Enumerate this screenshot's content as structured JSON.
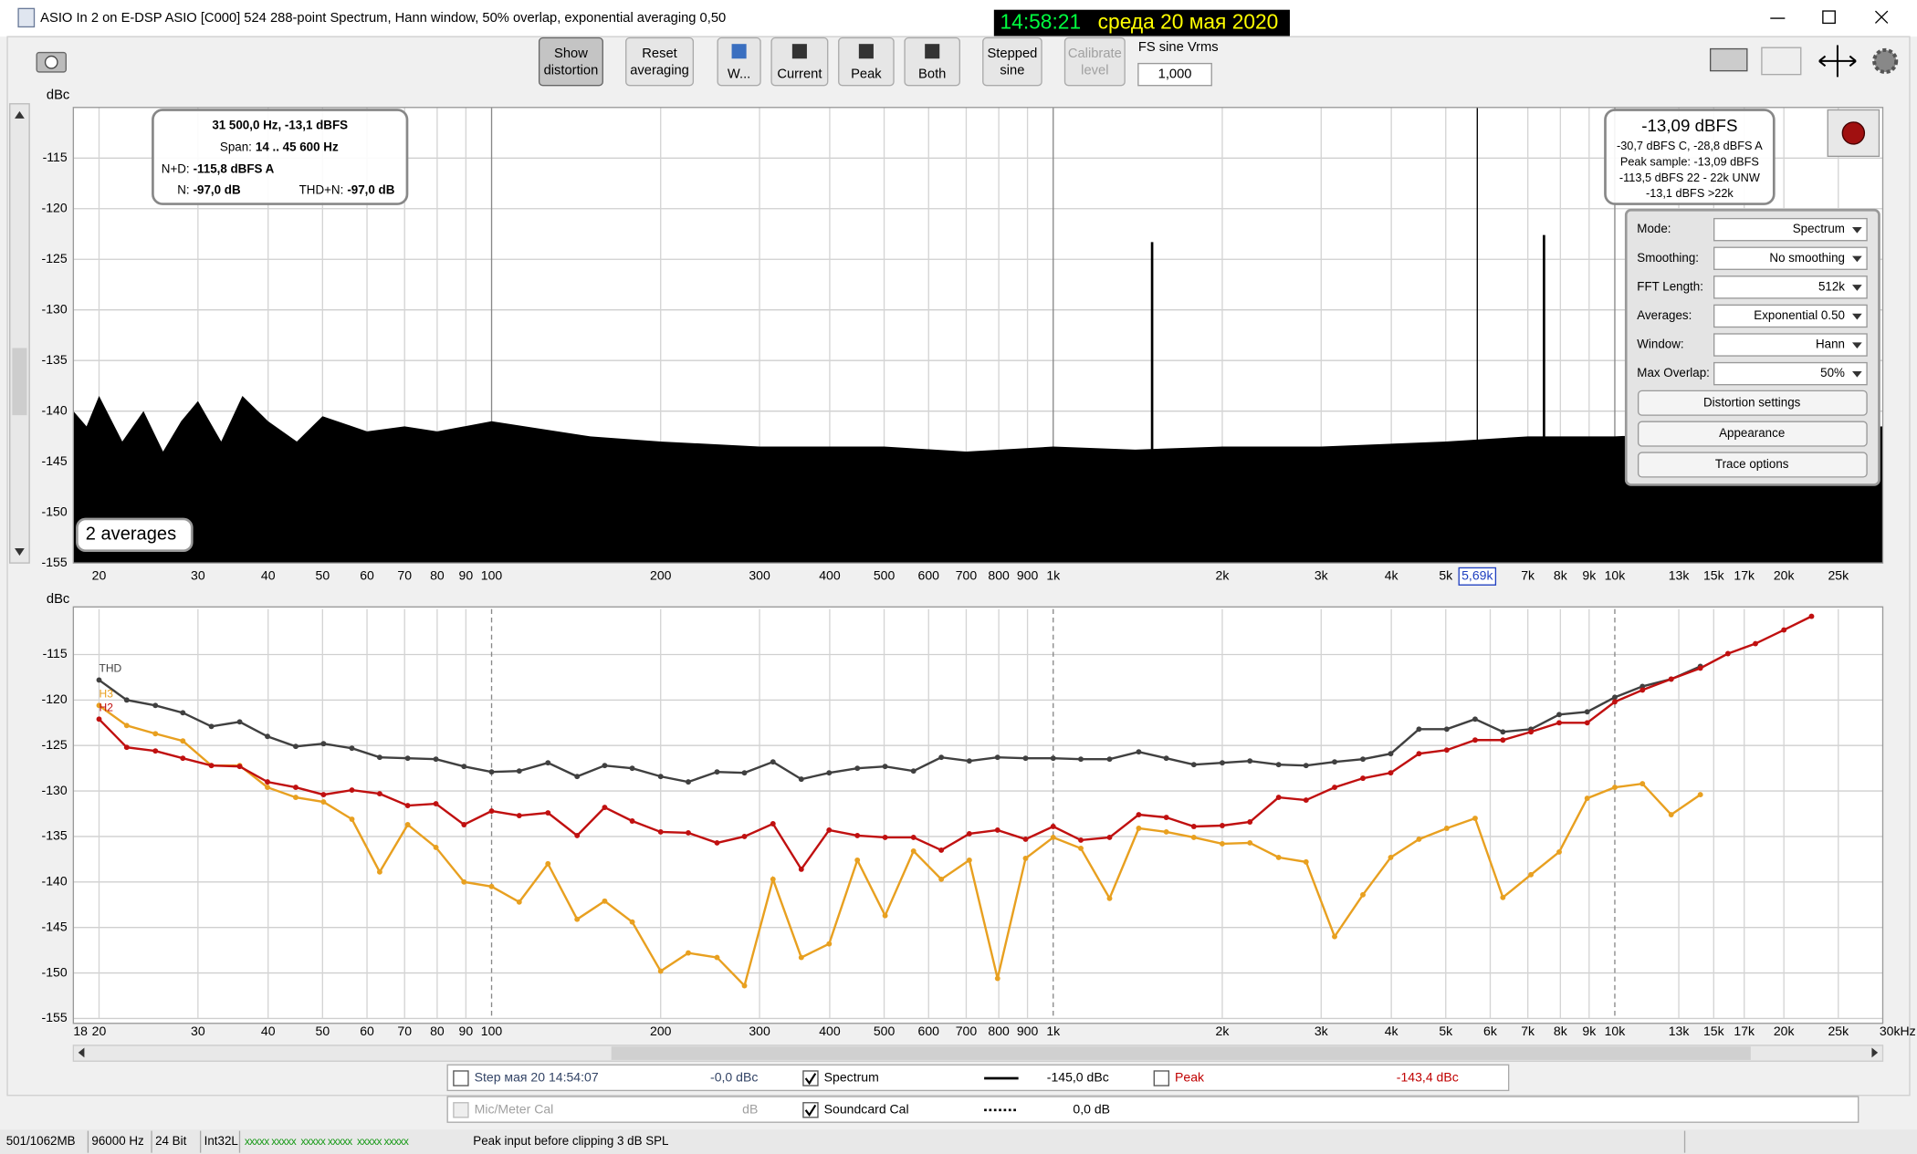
{
  "window": {
    "title": "ASIO In 2 on E-DSP ASIO [C000] 524 288-point Spectrum, Hann window, 50% overlap, exponential averaging 0,50",
    "clock": {
      "time": "14:58:21",
      "date": "среда 20 мая 2020"
    }
  },
  "toolbar": {
    "buttons": [
      {
        "label": [
          "Show",
          "distortion"
        ],
        "pressed": true
      },
      {
        "label": [
          "Reset",
          "averaging"
        ]
      },
      {
        "label": [
          "W..."
        ]
      },
      {
        "label": [
          "Current"
        ]
      },
      {
        "label": [
          "Peak"
        ]
      },
      {
        "label": [
          "Both"
        ]
      },
      {
        "label": [
          "Stepped",
          "sine"
        ]
      },
      {
        "label": [
          "Calibrate",
          "level"
        ],
        "disabled": true
      }
    ],
    "fs_label": "FS sine Vrms",
    "fs_value": "1,000"
  },
  "info_box": {
    "cursor": "31 500,0 Hz, -13,1 dBFS",
    "span_label": "Span:",
    "span": "14 .. 45 600 Hz",
    "nd_label": "N+D:",
    "nd": "-115,8 dBFS A",
    "n_label": "N:",
    "n": "-97,0 dB",
    "thdn_label": "THD+N:",
    "thdn": "-97,0 dB"
  },
  "level_box": {
    "main": "-13,09 dBFS",
    "lines": [
      "-30,7 dBFS C, -28,8 dBFS A",
      "Peak sample: -13,09 dBFS",
      "-113,5 dBFS 22 - 22k UNW",
      "-13,1 dBFS >22k"
    ]
  },
  "controls": {
    "rows": [
      {
        "label": "Mode:",
        "value": "Spectrum"
      },
      {
        "label": "Smoothing:",
        "value": "No  smoothing"
      },
      {
        "label": "FFT Length:",
        "value": "512k"
      },
      {
        "label": "Averages:",
        "value": "Exponential 0.50"
      },
      {
        "label": "Window:",
        "value": "Hann"
      },
      {
        "label": "Max Overlap:",
        "value": "50%"
      }
    ],
    "buttons": [
      "Distortion settings",
      "Appearance",
      "Trace options"
    ]
  },
  "averages": "2 averages",
  "chart_data": [
    {
      "type": "area",
      "ylabel": "dBc",
      "xscale": "log",
      "xlim": [
        18,
        30000
      ],
      "ylim": [
        -155,
        -110
      ],
      "grid": true,
      "decade_style": "solid",
      "color": "#000000",
      "yticks": [
        -115,
        -120,
        -125,
        -130,
        -135,
        -140,
        -145,
        -150,
        -155
      ],
      "xticks": [
        20,
        30,
        40,
        50,
        60,
        70,
        80,
        90,
        100,
        200,
        300,
        400,
        500,
        600,
        700,
        800,
        900,
        {
          "value": 1000,
          "label": "1k"
        },
        {
          "value": 2000,
          "label": "2k"
        },
        {
          "value": 3000,
          "label": "3k"
        },
        {
          "value": 4000,
          "label": "4k"
        },
        {
          "value": 5000,
          "label": "5k"
        },
        {
          "value": 7000,
          "label": "7k"
        },
        {
          "value": 8000,
          "label": "8k"
        },
        {
          "value": 9000,
          "label": "9k"
        },
        {
          "value": 10000,
          "label": "10k"
        },
        {
          "value": 13000,
          "label": "13k"
        },
        {
          "value": 15000,
          "label": "15k"
        },
        {
          "value": 17000,
          "label": "17k"
        },
        {
          "value": 20000,
          "label": "20k"
        },
        {
          "value": 25000,
          "label": "25k"
        }
      ],
      "cursor": {
        "value": 5690,
        "label": "5,69k"
      },
      "x": [
        18,
        19,
        20,
        22,
        24,
        26,
        28,
        30,
        33,
        36,
        40,
        45,
        50,
        60,
        70,
        80,
        100,
        150,
        200,
        300,
        500,
        700,
        1000,
        1400,
        2000,
        3000,
        5000,
        7000,
        10000,
        15000,
        20000,
        30000
      ],
      "values": [
        -140,
        -141.5,
        -138.5,
        -143,
        -140,
        -144,
        -141,
        -139,
        -143,
        -138.5,
        -141,
        -143,
        -140.5,
        -142,
        -141.5,
        -142,
        -141,
        -142.5,
        -143,
        -143.5,
        -143.5,
        -144,
        -143.5,
        -143.8,
        -143.5,
        -143.5,
        -143,
        -142.5,
        -142.5,
        -142,
        -142,
        -141.5
      ],
      "spikes": {
        "x": [
          1500,
          7480
        ],
        "values": [
          -123.3,
          -122.6
        ]
      }
    },
    {
      "type": "line",
      "ylabel": "dBc",
      "xscale": "log",
      "xlim": [
        18,
        30000
      ],
      "ylim": [
        -155,
        -110
      ],
      "grid": true,
      "decade_style": "dashed",
      "yticks": [
        -115,
        -120,
        -125,
        -130,
        -135,
        -140,
        -145,
        -150,
        -155
      ],
      "xticks": [
        18,
        20,
        30,
        40,
        50,
        60,
        70,
        80,
        90,
        100,
        200,
        300,
        400,
        500,
        600,
        700,
        800,
        900,
        {
          "value": 1000,
          "label": "1k"
        },
        {
          "value": 2000,
          "label": "2k"
        },
        {
          "value": 3000,
          "label": "3k"
        },
        {
          "value": 4000,
          "label": "4k"
        },
        {
          "value": 5000,
          "label": "5k"
        },
        {
          "value": 6000,
          "label": "6k"
        },
        {
          "value": 7000,
          "label": "7k"
        },
        {
          "value": 8000,
          "label": "8k"
        },
        {
          "value": 9000,
          "label": "9k"
        },
        {
          "value": 10000,
          "label": "10k"
        },
        {
          "value": 13000,
          "label": "13k"
        },
        {
          "value": 15000,
          "label": "15k"
        },
        {
          "value": 17000,
          "label": "17k"
        },
        {
          "value": 20000,
          "label": "20k"
        },
        {
          "value": 25000,
          "label": "25k"
        },
        {
          "value": 30000,
          "label": "30kHz"
        }
      ],
      "x": [
        20,
        22.4,
        25.2,
        28.2,
        31.7,
        35.6,
        39.9,
        44.8,
        50.2,
        56.4,
        63.2,
        70.9,
        79.6,
        89.3,
        100,
        112,
        126,
        142,
        159,
        178,
        200,
        224,
        252,
        282,
        317,
        356,
        399,
        448,
        502,
        564,
        632,
        709,
        796,
        893,
        1000,
        1120,
        1260,
        1420,
        1590,
        1780,
        2000,
        2240,
        2520,
        2820,
        3170,
        3560,
        3990,
        4480,
        5020,
        5640,
        6320,
        7090,
        7960,
        8930,
        10000,
        11200,
        12600,
        14200,
        15900,
        17800,
        20000,
        22400
      ],
      "series": [
        {
          "name": "THD",
          "color": "#404040",
          "values": [
            -117.8,
            -120.0,
            -120.6,
            -121.4,
            -122.9,
            -122.4,
            -124.0,
            -125.1,
            -124.8,
            -125.3,
            -126.3,
            -126.4,
            -126.5,
            -127.3,
            -127.9,
            -127.8,
            -126.9,
            -128.4,
            -127.2,
            -127.5,
            -128.4,
            -129.0,
            -127.9,
            -128.0,
            -126.8,
            -128.7,
            -128.0,
            -127.5,
            -127.3,
            -127.8,
            -126.3,
            -126.7,
            -126.3,
            -126.4,
            -126.4,
            -126.5,
            -126.5,
            -125.7,
            -126.4,
            -127.1,
            -126.9,
            -126.7,
            -127.1,
            -127.2,
            -126.8,
            -126.5,
            -125.9,
            -123.2,
            -123.2,
            -122.1,
            -123.5,
            -123.2,
            -121.6,
            -121.3,
            -119.7,
            -118.5,
            -117.7,
            -116.3,
            null,
            null,
            null,
            null
          ]
        },
        {
          "name": "H3",
          "color": "#e8a020",
          "values": [
            -120.6,
            -122.8,
            -123.7,
            -124.5,
            -127.2,
            -127.2,
            -129.6,
            -130.7,
            -131.2,
            -133.1,
            -138.9,
            -133.7,
            -136.2,
            -140.0,
            -140.5,
            -142.2,
            -138.0,
            -144.1,
            -142.1,
            -144.4,
            -149.8,
            -147.8,
            -148.3,
            -151.4,
            -139.7,
            -148.3,
            -146.8,
            -137.6,
            -143.7,
            -136.6,
            -139.7,
            -137.6,
            -150.6,
            -137.4,
            -135.1,
            -136.3,
            -141.8,
            -134.1,
            -134.5,
            -135.1,
            -135.8,
            -135.7,
            -137.3,
            -137.8,
            -146.0,
            -141.4,
            -137.3,
            -135.3,
            -134.1,
            -133.0,
            -141.7,
            -139.2,
            -136.7,
            -130.8,
            -129.6,
            -129.2,
            -132.6,
            -130.4,
            null,
            null,
            null,
            null
          ]
        },
        {
          "name": "H2",
          "color": "#c01010",
          "values": [
            -122.1,
            -125.2,
            -125.6,
            -126.4,
            -127.2,
            -127.3,
            -129.0,
            -129.6,
            -130.4,
            -129.9,
            -130.3,
            -131.6,
            -131.4,
            -133.7,
            -132.2,
            -132.7,
            -132.4,
            -134.9,
            -131.8,
            -133.3,
            -134.5,
            -134.6,
            -135.7,
            -135.0,
            -133.6,
            -138.6,
            -134.3,
            -134.9,
            -135.1,
            -135.1,
            -136.5,
            -134.7,
            -134.3,
            -135.3,
            -133.9,
            -135.4,
            -135.1,
            -132.6,
            -132.9,
            -133.9,
            -133.8,
            -133.4,
            -130.7,
            -131.0,
            -129.6,
            -128.6,
            -128.0,
            -125.9,
            -125.5,
            -124.4,
            -124.4,
            -123.5,
            -122.5,
            -122.5,
            -120.2,
            -118.9,
            -117.7,
            -116.5,
            -114.9,
            -113.8,
            -112.3,
            -110.8
          ]
        }
      ]
    }
  ],
  "traces": [
    {
      "name": "Step мая 20 14:54:07",
      "value": "-0,0 dBc",
      "checked": false
    },
    {
      "name": "Spectrum",
      "value": "-145,0 dBc",
      "checked": true
    },
    {
      "name": "Peak",
      "value": "-143,4 dBc",
      "checked": false
    }
  ],
  "cal": [
    {
      "name": "Mic/Meter Cal",
      "value": "dB",
      "checked": false
    },
    {
      "name": "Soundcard Cal",
      "value": "0,0 dB",
      "checked": true
    }
  ],
  "status": [
    "501/1062MB",
    "96000 Hz",
    "24 Bit",
    "Int32L",
    "Peak input before clipping 3 dB SPL"
  ]
}
